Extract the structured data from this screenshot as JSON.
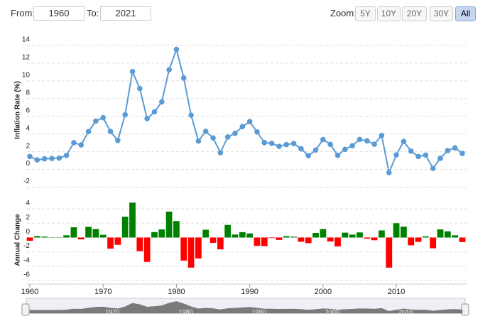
{
  "controls": {
    "from_label": "From:",
    "from": "1960",
    "to_label": "To:",
    "to": "2021",
    "zoom_label": "Zoom:",
    "zoom_buttons": [
      "5Y",
      "10Y",
      "20Y",
      "30Y",
      "All"
    ],
    "active_zoom": 4
  },
  "navigator": {
    "xticks": [
      1970,
      1980,
      1990,
      2000,
      2010
    ]
  },
  "chart_data": [
    {
      "type": "line",
      "y_label": "Inflation Rate (%)",
      "color": "#5b9bd5",
      "x": [
        1960,
        1961,
        1962,
        1963,
        1964,
        1965,
        1966,
        1967,
        1968,
        1969,
        1970,
        1971,
        1972,
        1973,
        1974,
        1975,
        1976,
        1977,
        1978,
        1979,
        1980,
        1981,
        1982,
        1983,
        1984,
        1985,
        1986,
        1987,
        1988,
        1989,
        1990,
        1991,
        1992,
        1993,
        1994,
        1995,
        1996,
        1997,
        1998,
        1999,
        2000,
        2001,
        2002,
        2003,
        2004,
        2005,
        2006,
        2007,
        2008,
        2009,
        2010,
        2011,
        2012,
        2013,
        2014,
        2015,
        2016,
        2017,
        2018,
        2019
      ],
      "values": [
        1.46,
        1.07,
        1.2,
        1.24,
        1.28,
        1.59,
        3.02,
        2.77,
        4.27,
        5.46,
        5.84,
        4.29,
        3.27,
        6.18,
        11.05,
        9.14,
        5.74,
        6.5,
        7.63,
        11.25,
        13.55,
        10.33,
        6.13,
        3.21,
        4.3,
        3.55,
        1.9,
        3.66,
        4.08,
        4.83,
        5.4,
        4.23,
        3.03,
        2.95,
        2.61,
        2.81,
        2.93,
        2.34,
        1.55,
        2.19,
        3.38,
        2.83,
        1.59,
        2.27,
        2.68,
        3.39,
        3.23,
        2.85,
        3.84,
        -0.36,
        1.64,
        3.16,
        2.07,
        1.46,
        1.62,
        0.12,
        1.26,
        2.13,
        2.44,
        1.81
      ],
      "xlim": [
        1960,
        2019
      ],
      "ylim": [
        -3,
        16
      ],
      "yticks": [
        -2,
        0,
        2,
        4,
        6,
        8,
        10,
        12,
        14
      ],
      "grid": true
    },
    {
      "type": "bar",
      "y_label": "Annual Change",
      "positive_color": "#008000",
      "negative_color": "#ff0000",
      "x": [
        1960,
        1961,
        1962,
        1963,
        1964,
        1965,
        1966,
        1967,
        1968,
        1969,
        1970,
        1971,
        1972,
        1973,
        1974,
        1975,
        1976,
        1977,
        1978,
        1979,
        1980,
        1981,
        1982,
        1983,
        1984,
        1985,
        1986,
        1987,
        1988,
        1989,
        1990,
        1991,
        1992,
        1993,
        1994,
        1995,
        1996,
        1997,
        1998,
        1999,
        2000,
        2001,
        2002,
        2003,
        2004,
        2005,
        2006,
        2007,
        2008,
        2009,
        2010,
        2011,
        2012,
        2013,
        2014,
        2015,
        2016,
        2017,
        2018,
        2019
      ],
      "values": [
        -0.45,
        0.2,
        0.13,
        0.04,
        0.04,
        0.31,
        1.43,
        -0.25,
        1.5,
        1.19,
        0.38,
        -1.55,
        -1.02,
        2.91,
        4.87,
        -1.91,
        -3.4,
        0.76,
        1.13,
        3.62,
        2.3,
        -3.22,
        -4.2,
        -2.92,
        1.09,
        -0.75,
        -1.65,
        1.76,
        0.42,
        0.75,
        0.57,
        -1.17,
        -1.2,
        -0.08,
        -0.34,
        0.2,
        0.12,
        -0.59,
        -0.79,
        0.64,
        1.19,
        -0.55,
        -1.24,
        0.68,
        0.41,
        0.71,
        -0.16,
        -0.38,
        0.99,
        -4.2,
        2.0,
        1.52,
        -1.09,
        -0.61,
        0.16,
        -1.5,
        1.14,
        0.87,
        0.31,
        -0.63
      ],
      "xlim": [
        1960,
        2019
      ],
      "xticks": [
        1960,
        1970,
        1980,
        1990,
        2000,
        2010
      ],
      "ylim": [
        -6.5,
        5
      ],
      "yticks": [
        -6,
        -4,
        -2,
        0,
        2,
        4
      ],
      "grid": true
    }
  ]
}
